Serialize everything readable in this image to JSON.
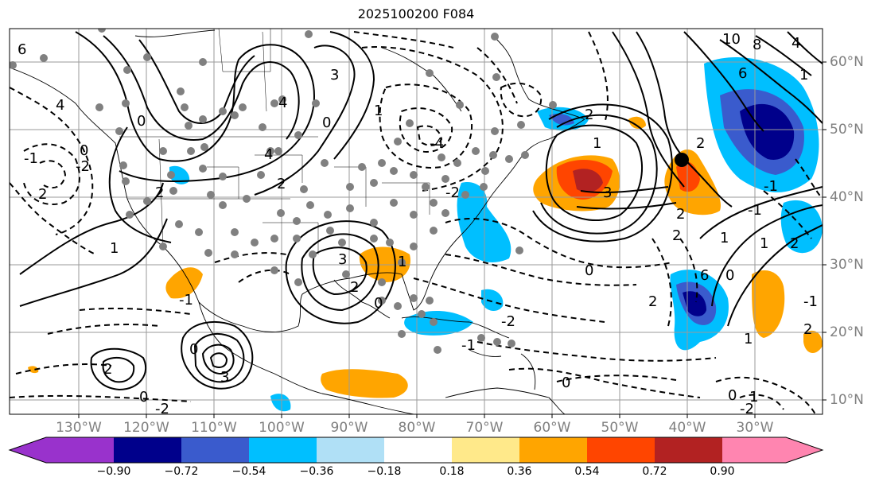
{
  "title": "2025100200 F084",
  "lat_labels": [
    "60°N",
    "50°N",
    "40°N",
    "30°N",
    "20°N",
    "10°N"
  ],
  "lon_labels": [
    "130°W",
    "120°W",
    "110°W",
    "100°W",
    "90°W",
    "80°W",
    "70°W",
    "60°W",
    "50°W",
    "40°W",
    "30°W"
  ],
  "contour_labels": [
    "6",
    "4",
    "0",
    "2",
    "1",
    "2",
    "-1",
    "-2",
    "0",
    "2",
    "4",
    "3",
    "0",
    "-4",
    "1",
    "4",
    "-2",
    "3",
    "1",
    "2",
    "6",
    "8",
    "10",
    "4",
    "2",
    "1",
    "0",
    "2",
    "1",
    "0",
    "-1",
    "1",
    "-1",
    "2",
    "1",
    "-1",
    "3",
    "2",
    "-1",
    "-1",
    "0",
    "0",
    "-2",
    "0",
    "3",
    "6",
    "0",
    "2",
    "1",
    "-2",
    "2",
    "0",
    "1",
    "-2",
    "2",
    "2"
  ],
  "colorbar": {
    "ticks": [
      "−0.90",
      "−0.72",
      "−0.54",
      "−0.36",
      "−0.18",
      "0.18",
      "0.36",
      "0.54",
      "0.72",
      "0.90"
    ],
    "colors": [
      "#9932cc",
      "#00008b",
      "#3a5bcd",
      "#00bfff",
      "#b0e0f6",
      "#ffffff",
      "#ffe98a",
      "#ffa500",
      "#ff4500",
      "#b22222",
      "#ff85b0"
    ]
  },
  "marker": {
    "lat": "45°N",
    "lon": "41°W"
  }
}
